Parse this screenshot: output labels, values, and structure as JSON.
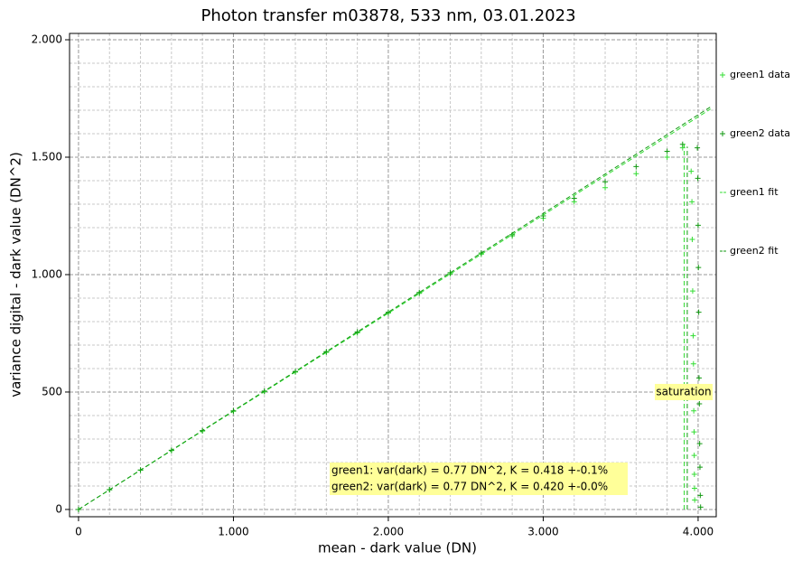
{
  "chart_data": {
    "type": "scatter",
    "title": "Photon transfer m03878,  533 nm, 03.01.2023",
    "x_label": "mean - dark value (DN)",
    "y_label": "variance digital - dark value (DN^2)",
    "xlim": [
      -58,
      4117
    ],
    "ylim": [
      -31,
      2027
    ],
    "xticks": [
      0,
      {
        "value": 1000,
        "label": "1.000"
      },
      {
        "value": 2000,
        "label": "2.000"
      },
      {
        "value": 3000,
        "label": "3.000"
      },
      {
        "value": 4000,
        "label": "4.000"
      }
    ],
    "yticks": [
      0,
      500,
      {
        "value": 1000,
        "label": "1.000"
      },
      {
        "value": 1500,
        "label": "1.500"
      },
      {
        "value": 2000,
        "label": "2.000"
      }
    ],
    "xminorticks": [
      200,
      400,
      600,
      800,
      1200,
      1400,
      1600,
      1800,
      2200,
      2400,
      2600,
      2800,
      3200,
      3400,
      3600,
      3800
    ],
    "yminorticks": [
      100,
      200,
      300,
      400,
      600,
      700,
      800,
      900,
      1100,
      1200,
      1300,
      1400,
      1600,
      1700,
      1800,
      1900
    ],
    "grid": true,
    "legend_position": "right",
    "series": [
      {
        "name": "green1 data",
        "kind": "points",
        "color": "#33dd33",
        "x": [
          0,
          200,
          400,
          600,
          800,
          1000,
          1200,
          1400,
          1600,
          1800,
          2000,
          2200,
          2400,
          2600,
          2800,
          3000,
          3200,
          3400,
          3600,
          3800,
          3900,
          3955,
          3960,
          3962,
          3965,
          3968,
          3970,
          3972,
          3974,
          3975,
          3976,
          3977,
          3978
        ],
        "values": [
          0,
          84,
          167,
          251,
          334,
          418,
          502,
          585,
          669,
          752,
          836,
          920,
          1003,
          1087,
          1165,
          1240,
          1310,
          1370,
          1430,
          1500,
          1540,
          1440,
          1310,
          1150,
          930,
          740,
          620,
          420,
          330,
          230,
          150,
          90,
          40
        ]
      },
      {
        "name": "green2 data",
        "kind": "points",
        "color": "#119911",
        "x": [
          0,
          200,
          400,
          600,
          800,
          1000,
          1200,
          1400,
          1600,
          1800,
          2000,
          2200,
          2400,
          2600,
          2800,
          3000,
          3200,
          3400,
          3600,
          3800,
          3900,
          3995,
          3998,
          4000,
          4002,
          4004,
          4006,
          4008,
          4010,
          4012,
          4014,
          4016
        ],
        "values": [
          0,
          84,
          168,
          252,
          336,
          420,
          504,
          588,
          672,
          756,
          840,
          924,
          1008,
          1092,
          1170,
          1250,
          1325,
          1395,
          1460,
          1525,
          1555,
          1540,
          1410,
          1210,
          1030,
          840,
          560,
          450,
          280,
          180,
          60,
          10
        ]
      },
      {
        "name": "green1 fit",
        "kind": "line",
        "color": "#33dd33",
        "x": [
          0,
          4080
        ],
        "values": [
          0,
          1705
        ]
      },
      {
        "name": "green2 fit",
        "kind": "line",
        "color": "#119911",
        "x": [
          0,
          4080
        ],
        "values": [
          0,
          1714
        ]
      }
    ],
    "saturation": {
      "label": "saturation",
      "x": [
        3910,
        3930
      ],
      "y": [
        1560,
        1545
      ],
      "label_y": 500
    },
    "annotations": [
      "green1: var(dark) = 0.77 DN^2, K = 0.418 +-0.1%",
      "green2: var(dark) = 0.77 DN^2, K = 0.420 +-0.0%"
    ]
  }
}
